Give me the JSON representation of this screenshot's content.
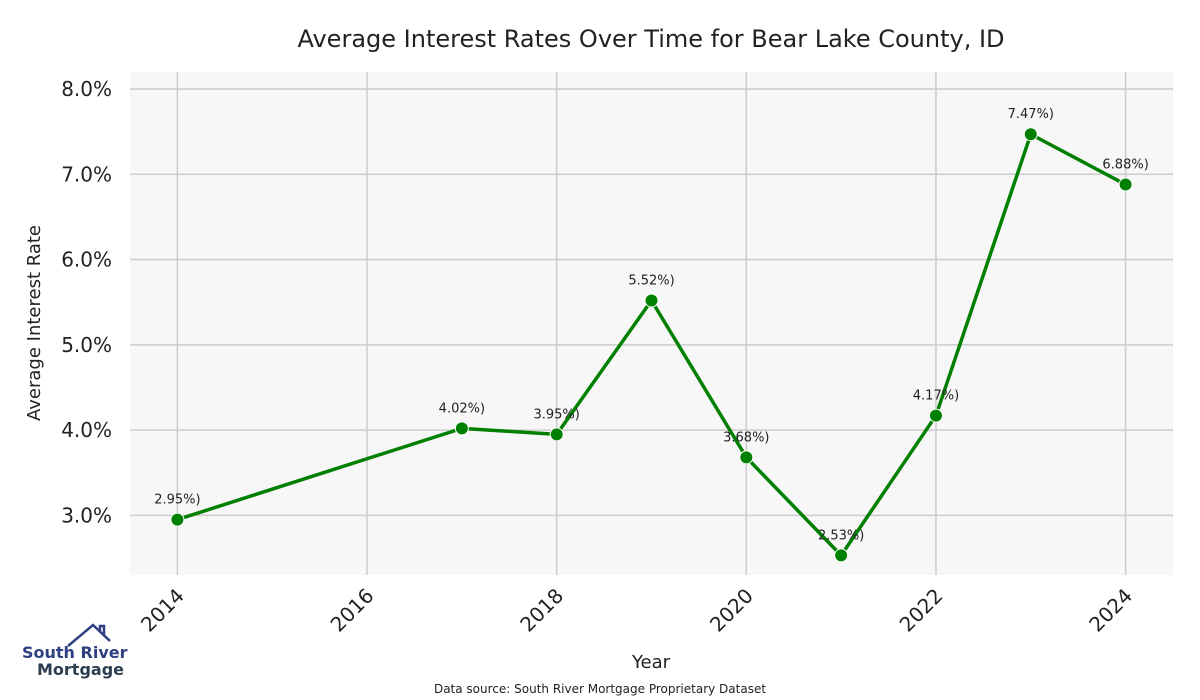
{
  "chart_data": {
    "type": "line",
    "title": "Average Interest Rates Over Time for Bear Lake County, ID",
    "xlabel": "Year",
    "ylabel": "Average Interest Rate",
    "xlim": [
      2013.5,
      2024.5
    ],
    "ylim": [
      2.3,
      8.2
    ],
    "x_ticks": [
      "2014",
      "2016",
      "2018",
      "2020",
      "2022",
      "2024"
    ],
    "y_ticks": [
      "3.0%",
      "4.0%",
      "5.0%",
      "6.0%",
      "7.0%",
      "8.0%"
    ],
    "grid": true,
    "line_color": "#008000",
    "series": [
      {
        "x": [
          2014,
          2017,
          2018,
          2019,
          2020,
          2021,
          2022,
          2023,
          2024
        ],
        "values": [
          2.95,
          4.02,
          3.95,
          5.52,
          3.68,
          2.53,
          4.17,
          7.47,
          6.88
        ],
        "labels": [
          "2.95%)",
          "4.02%)",
          "3.95%)",
          "5.52%)",
          "3.68%)",
          "2.53%)",
          "4.17%)",
          "7.47%)",
          "6.88%)"
        ]
      }
    ]
  },
  "source": "Data source: South River Mortgage Proprietary Dataset",
  "logo": {
    "line1": "South River",
    "line2": "Mortgage",
    "color": "#2e3f82"
  }
}
